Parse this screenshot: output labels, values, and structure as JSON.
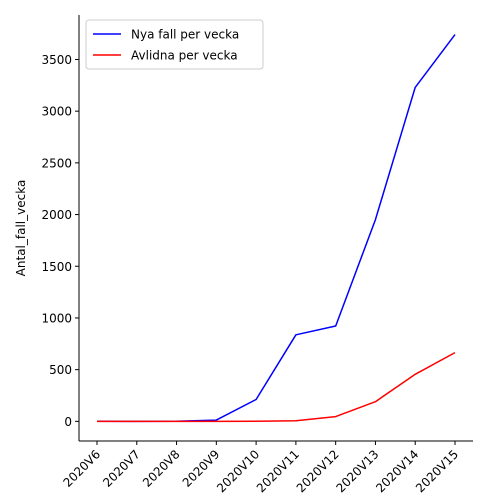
{
  "chart_data": {
    "type": "line",
    "title": "",
    "xlabel": "",
    "ylabel": "Antal_fall_vecka",
    "categories": [
      "2020V6",
      "2020V7",
      "2020V8",
      "2020V9",
      "2020V10",
      "2020V11",
      "2020V12",
      "2020V13",
      "2020V14",
      "2020V15"
    ],
    "series": [
      {
        "name": "Nya fall per vecka",
        "color": "#0000ff",
        "values": [
          1,
          0,
          1,
          12,
          211,
          837,
          922,
          1950,
          3230,
          3740
        ]
      },
      {
        "name": "Avlidna per vecka",
        "color": "#ff0000",
        "values": [
          0,
          0,
          0,
          0,
          1,
          6,
          46,
          190,
          455,
          665
        ]
      }
    ],
    "yticks": [
      0,
      500,
      1000,
      1500,
      2000,
      2500,
      3000,
      3500
    ],
    "ylim": [
      -190,
      3930
    ],
    "legend": "top-left",
    "grid": false
  }
}
